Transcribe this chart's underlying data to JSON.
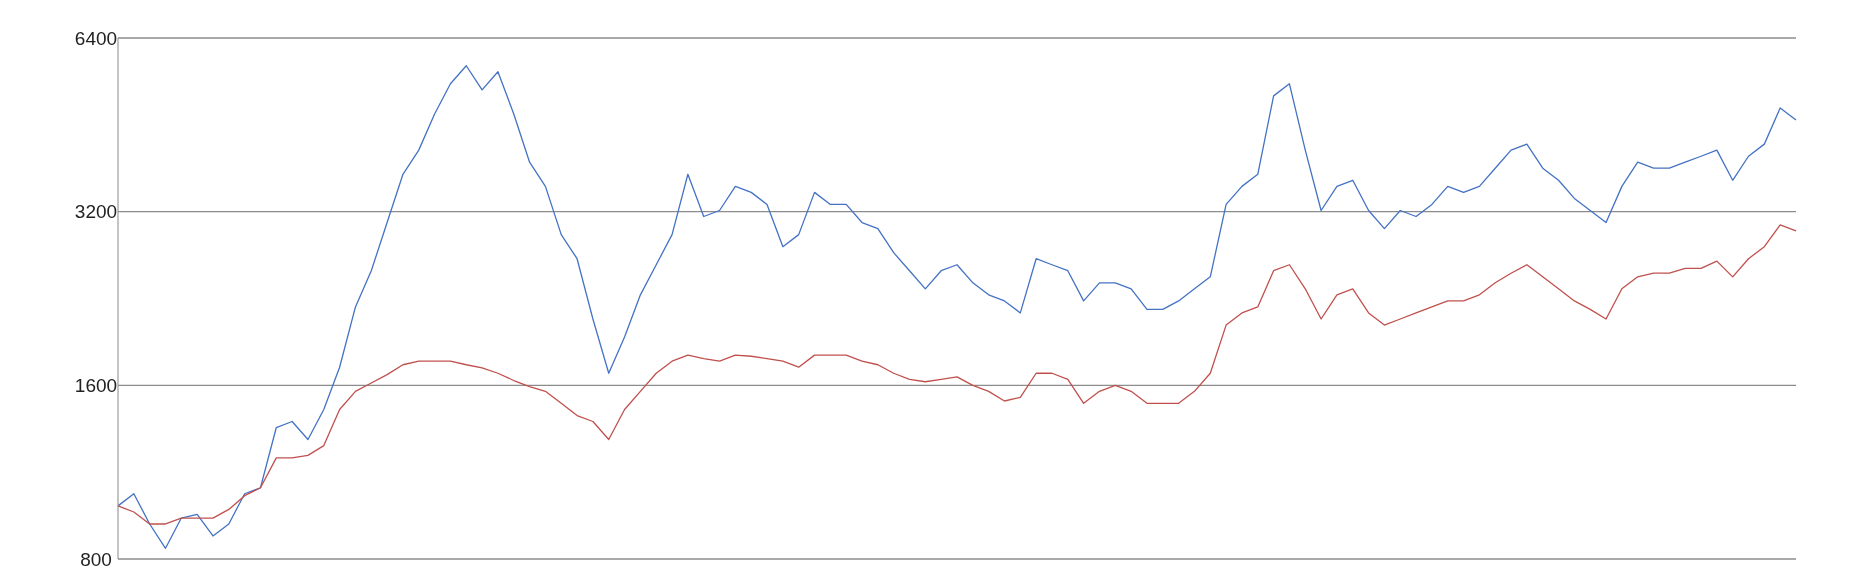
{
  "chart_data": {
    "type": "line",
    "log": "y",
    "ylim": [
      800,
      6400
    ],
    "yticks": [
      800,
      1600,
      3200,
      6400
    ],
    "grid": "y",
    "tick_labels": "y",
    "marker": "none",
    "categories": [
      null,
      null,
      null,
      null,
      null,
      null,
      null,
      null,
      null,
      null,
      null,
      null,
      null,
      null,
      null,
      null,
      null,
      null,
      null,
      null,
      null,
      null,
      null,
      null,
      null,
      null,
      null,
      null,
      null,
      null,
      null,
      null,
      null,
      null,
      null,
      null,
      null,
      null,
      null,
      null,
      null,
      null,
      null,
      null,
      null,
      null,
      null,
      null,
      null,
      null,
      null,
      null,
      null,
      null,
      null,
      null,
      null,
      null,
      null,
      null,
      null,
      null,
      null,
      null,
      null,
      null,
      null,
      null,
      null,
      null,
      null,
      null,
      null,
      null,
      null,
      null,
      null,
      null,
      null,
      null,
      null,
      null,
      null,
      null,
      null,
      null,
      null,
      null,
      null,
      null,
      null,
      null,
      null,
      null,
      null,
      null,
      null,
      null,
      null,
      null,
      null,
      null,
      null,
      null,
      null,
      null,
      null
    ],
    "series": [
      {
        "color": "#4472c4",
        "values": [
          989,
          1038,
          920,
          835,
          942,
          956,
          877,
          920,
          1038,
          1063,
          1352,
          1385,
          1289,
          1453,
          1720,
          2188,
          2528,
          3064,
          3715,
          4091,
          4726,
          5331,
          5729,
          5203,
          5594,
          4726,
          3898,
          3540,
          2920,
          2652,
          2085,
          1679,
          1940,
          2296,
          2589,
          2920,
          3715,
          3139,
          3215,
          3540,
          3456,
          3294,
          2783,
          2920,
          3456,
          3294,
          3294,
          3064,
          2991,
          2717,
          2528,
          2352,
          2528,
          2589,
          2409,
          2296,
          2241,
          2136,
          2652,
          2589,
          2528,
          2241,
          2409,
          2409,
          2352,
          2167,
          2167,
          2241,
          2352,
          2467,
          3294,
          3540,
          3715,
          5080,
          5331,
          4091,
          3215,
          3540,
          3627,
          3215,
          2991,
          3215,
          3139,
          3294,
          3540,
          3456,
          3540,
          3806,
          4091,
          4190,
          3806,
          3627,
          3374,
          3215,
          3064,
          3540,
          3898,
          3806,
          3806,
          3898,
          3992,
          4091,
          3627,
          3992,
          4190,
          4841,
          4614
        ]
      },
      {
        "color": "#c0504d",
        "values": [
          989,
          965,
          920,
          920,
          942,
          942,
          942,
          975,
          1030,
          1063,
          1198,
          1198,
          1210,
          1258,
          1453,
          1562,
          1615,
          1670,
          1737,
          1762,
          1762,
          1762,
          1737,
          1715,
          1679,
          1631,
          1592,
          1562,
          1489,
          1418,
          1385,
          1289,
          1453,
          1562,
          1679,
          1762,
          1805,
          1780,
          1762,
          1805,
          1797,
          1780,
          1762,
          1720,
          1805,
          1805,
          1805,
          1762,
          1737,
          1679,
          1639,
          1623,
          1639,
          1655,
          1600,
          1562,
          1503,
          1525,
          1679,
          1679,
          1639,
          1489,
          1562,
          1600,
          1562,
          1489,
          1489,
          1489,
          1562,
          1679,
          2035,
          2136,
          2188,
          2528,
          2589,
          2352,
          2085,
          2296,
          2352,
          2136,
          2035,
          2085,
          2136,
          2188,
          2241,
          2241,
          2296,
          2409,
          2503,
          2589,
          2467,
          2352,
          2241,
          2167,
          2085,
          2352,
          2467,
          2503,
          2503,
          2552,
          2552,
          2627,
          2467,
          2652,
          2783,
          3035,
          2963
        ]
      }
    ]
  }
}
